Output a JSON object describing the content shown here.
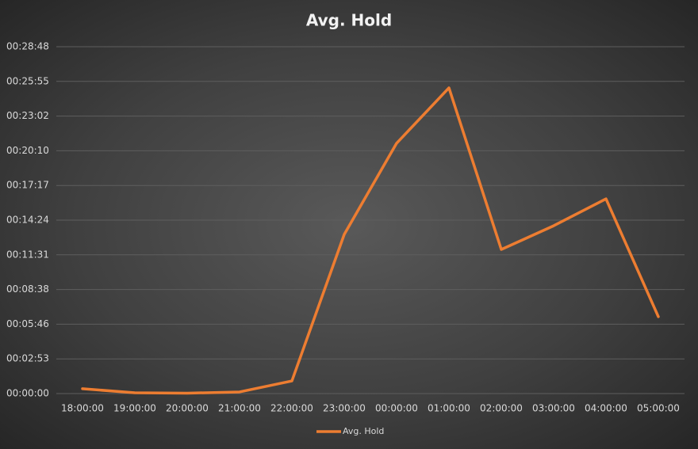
{
  "chart_data": {
    "type": "line",
    "title": "Avg. Hold",
    "categories": [
      "18:00:00",
      "19:00:00",
      "20:00:00",
      "21:00:00",
      "22:00:00",
      "23:00:00",
      "00:00:00",
      "01:00:00",
      "02:00:00",
      "03:00:00",
      "04:00:00",
      "05:00:00"
    ],
    "series": [
      {
        "name": "Avg. Hold",
        "color": "#ed7d31",
        "values": [
          24,
          4,
          2,
          8,
          63,
          793,
          1247,
          1523,
          718,
          836,
          970,
          383
        ]
      }
    ],
    "ylim": [
      0,
      1728
    ],
    "yticks": [
      {
        "value": 0,
        "label": "00:00:00"
      },
      {
        "value": 172.8,
        "label": "00:02:53"
      },
      {
        "value": 345.6,
        "label": "00:05:46"
      },
      {
        "value": 518.4,
        "label": "00:08:38"
      },
      {
        "value": 691.2,
        "label": "00:11:31"
      },
      {
        "value": 864,
        "label": "00:14:24"
      },
      {
        "value": 1036.8,
        "label": "00:17:17"
      },
      {
        "value": 1209.6,
        "label": "00:20:10"
      },
      {
        "value": 1382.4,
        "label": "00:23:02"
      },
      {
        "value": 1555.2,
        "label": "00:25:55"
      },
      {
        "value": 1728,
        "label": "00:28:48"
      }
    ],
    "grid": true,
    "legend": "bottom"
  }
}
